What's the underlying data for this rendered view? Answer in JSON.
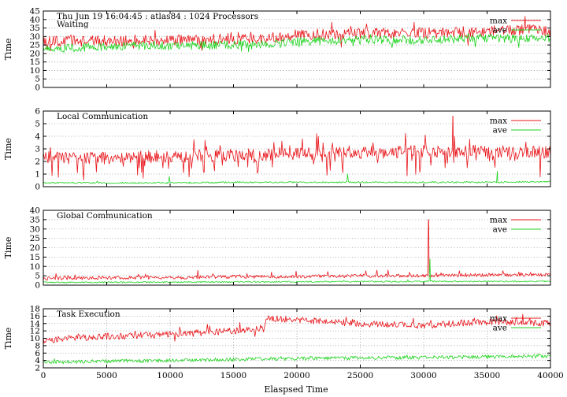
{
  "chart_data": [
    {
      "type": "line",
      "title": "Thu Jun 19 16:04:45 : atlas84 : 1024 Processors",
      "subtitle": "Waiting",
      "xlabel": "",
      "ylabel": "Time",
      "xlim": [
        0,
        40000
      ],
      "ylim": [
        0,
        45
      ],
      "yticks": [
        0,
        5,
        10,
        15,
        20,
        25,
        30,
        35,
        40,
        45
      ],
      "grid": "horizontal dotted",
      "legend_position": "top-right",
      "series": [
        {
          "name": "max",
          "color": "#e8151a",
          "x": [
            0,
            5000,
            10000,
            15000,
            17500,
            20000,
            25000,
            30000,
            35000,
            38000,
            40000
          ],
          "values": [
            27,
            27.5,
            28,
            28.5,
            29,
            31,
            32,
            32,
            33,
            34,
            33
          ],
          "peak": {
            "x": 38000,
            "value": 42
          }
        },
        {
          "name": "ave",
          "color": "#21d321",
          "x": [
            0,
            5000,
            10000,
            15000,
            17500,
            20000,
            25000,
            30000,
            35000,
            40000
          ],
          "values": [
            23,
            24,
            24.5,
            25,
            25,
            27,
            28,
            28,
            29,
            29
          ]
        }
      ]
    },
    {
      "type": "line",
      "title": "Local Communication",
      "xlabel": "",
      "ylabel": "Time",
      "xlim": [
        0,
        40000
      ],
      "ylim": [
        0,
        6
      ],
      "yticks": [
        0,
        1,
        2,
        3,
        4,
        5,
        6
      ],
      "grid": "horizontal dotted",
      "legend_position": "top-right",
      "series": [
        {
          "name": "max",
          "color": "#e8151a",
          "x": [
            0,
            5000,
            10000,
            15000,
            20000,
            25000,
            30000,
            35000,
            40000
          ],
          "values": [
            2.3,
            2.3,
            2.4,
            2.5,
            2.6,
            2.7,
            2.8,
            2.8,
            2.7
          ],
          "peak": {
            "x": 32300,
            "value": 5.6
          }
        },
        {
          "name": "ave",
          "color": "#21d321",
          "x": [
            0,
            5000,
            10000,
            15000,
            20000,
            25000,
            30000,
            35000,
            40000
          ],
          "values": [
            0.3,
            0.3,
            0.3,
            0.35,
            0.35,
            0.35,
            0.35,
            0.35,
            0.4
          ],
          "peak": {
            "x": 35800,
            "value": 1.2
          }
        }
      ]
    },
    {
      "type": "line",
      "title": "Global Communication",
      "xlabel": "",
      "ylabel": "Time",
      "xlim": [
        0,
        40000
      ],
      "ylim": [
        0,
        40
      ],
      "yticks": [
        0,
        5,
        10,
        15,
        20,
        25,
        30,
        35,
        40
      ],
      "grid": "horizontal dotted",
      "legend_position": "top-right",
      "series": [
        {
          "name": "max",
          "color": "#e8151a",
          "x": [
            0,
            5000,
            10000,
            15000,
            20000,
            25000,
            30000,
            35000,
            40000
          ],
          "values": [
            3.5,
            4,
            4,
            4.5,
            4.5,
            5,
            5,
            5.5,
            5.5
          ],
          "peak": {
            "x": 30400,
            "value": 35
          }
        },
        {
          "name": "ave",
          "color": "#21d321",
          "x": [
            0,
            5000,
            10000,
            15000,
            20000,
            25000,
            30000,
            35000,
            40000
          ],
          "values": [
            1.5,
            1.5,
            1.6,
            1.7,
            1.8,
            1.9,
            2,
            2,
            2
          ],
          "peak": {
            "x": 30500,
            "value": 14
          }
        }
      ]
    },
    {
      "type": "line",
      "title": "Task Execution",
      "xlabel": "Elaspsed Time",
      "ylabel": "Time",
      "xlim": [
        0,
        40000
      ],
      "ylim": [
        2,
        18
      ],
      "yticks": [
        2,
        4,
        6,
        8,
        10,
        12,
        14,
        16,
        18
      ],
      "xticks": [
        0,
        5000,
        10000,
        15000,
        20000,
        25000,
        30000,
        35000,
        40000
      ],
      "grid": "dotted",
      "legend_position": "top-right",
      "series": [
        {
          "name": "max",
          "color": "#e8151a",
          "x": [
            0,
            5000,
            10000,
            15000,
            17400,
            17600,
            20000,
            25000,
            30000,
            35000,
            40000
          ],
          "values": [
            9.5,
            10.5,
            11,
            12,
            12.5,
            15.5,
            15,
            14,
            13.5,
            14.5,
            14
          ]
        },
        {
          "name": "ave",
          "color": "#21d321",
          "x": [
            0,
            5000,
            10000,
            15000,
            20000,
            25000,
            30000,
            35000,
            40000
          ],
          "values": [
            3.5,
            3.8,
            4.0,
            4.3,
            4.5,
            4.7,
            4.8,
            5,
            5.2
          ]
        }
      ]
    }
  ]
}
